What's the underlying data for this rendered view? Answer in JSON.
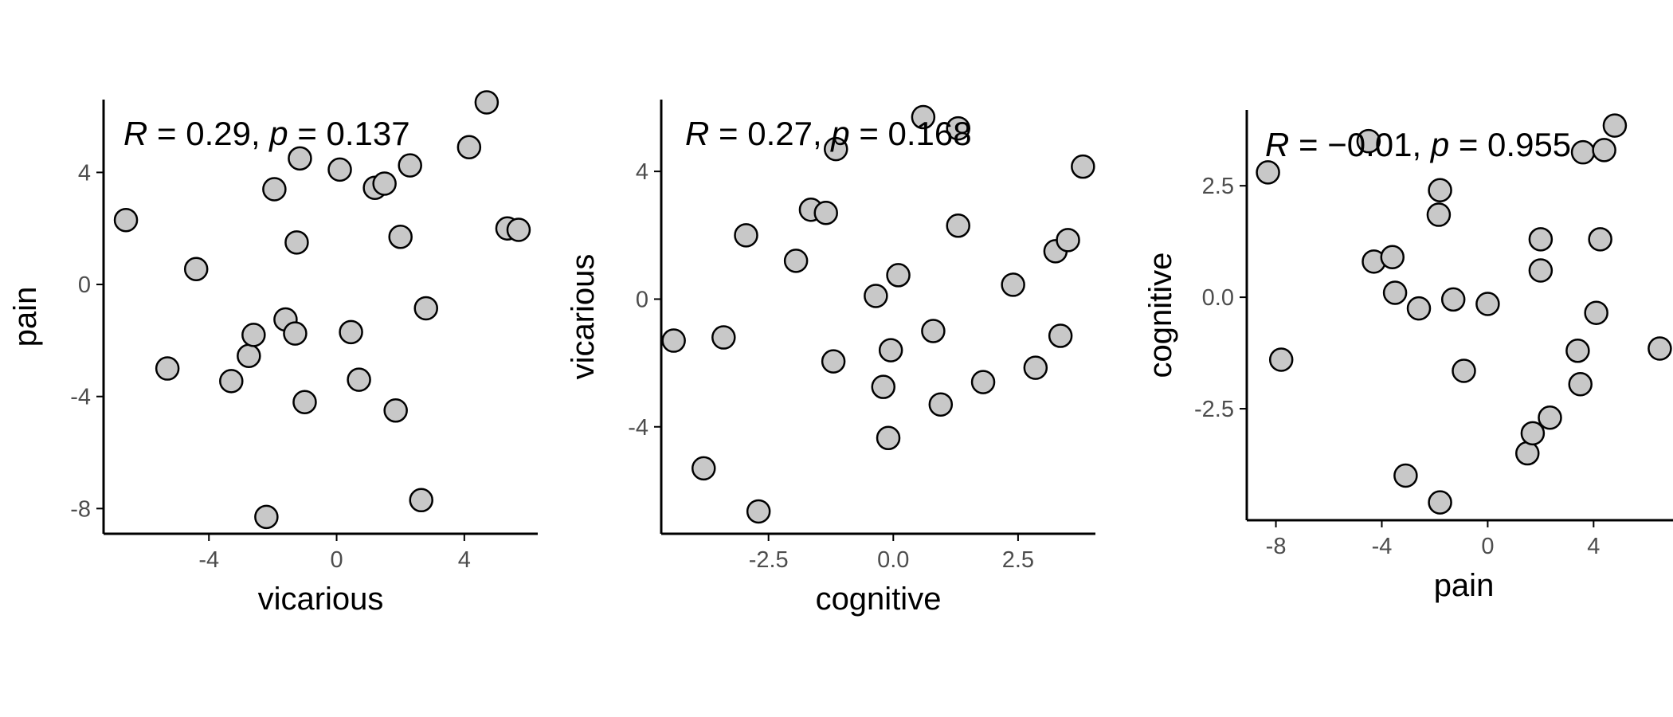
{
  "chart_data": [
    {
      "type": "scatter",
      "xlabel": "vicarious",
      "ylabel": "pain",
      "annotation": {
        "r_symbol": "R",
        "r_text": " = 0.29, ",
        "p_symbol": "p",
        "p_text": " = 0.137"
      },
      "xticks": [
        -4,
        0,
        4
      ],
      "xtick_labels": [
        "-4",
        "0",
        "4"
      ],
      "yticks": [
        -8,
        -4,
        0,
        4
      ],
      "ytick_labels": [
        "-8",
        "-4",
        "0",
        "4"
      ],
      "xlim": [
        -7.3,
        6.3
      ],
      "ylim": [
        -8.9,
        6.6
      ],
      "grid": false,
      "points": [
        {
          "x": -6.6,
          "y": 2.3
        },
        {
          "x": -4.4,
          "y": 0.55
        },
        {
          "x": -5.3,
          "y": -3.0
        },
        {
          "x": -3.3,
          "y": -3.45
        },
        {
          "x": -2.75,
          "y": -2.55
        },
        {
          "x": -2.6,
          "y": -1.8
        },
        {
          "x": -2.2,
          "y": -8.3
        },
        {
          "x": -1.95,
          "y": 3.4
        },
        {
          "x": -1.6,
          "y": -1.25
        },
        {
          "x": -1.3,
          "y": -1.75
        },
        {
          "x": -1.25,
          "y": 1.5
        },
        {
          "x": -1.15,
          "y": 4.5
        },
        {
          "x": -1.0,
          "y": -4.2
        },
        {
          "x": 0.1,
          "y": 4.1
        },
        {
          "x": 0.45,
          "y": -1.7
        },
        {
          "x": 0.7,
          "y": -3.4
        },
        {
          "x": 1.2,
          "y": 3.45
        },
        {
          "x": 1.5,
          "y": 3.6
        },
        {
          "x": 1.85,
          "y": -4.5
        },
        {
          "x": 2.0,
          "y": 1.7
        },
        {
          "x": 2.3,
          "y": 4.25
        },
        {
          "x": 2.65,
          "y": -7.7
        },
        {
          "x": 2.8,
          "y": -0.85
        },
        {
          "x": 4.15,
          "y": 4.9
        },
        {
          "x": 4.7,
          "y": 6.5
        },
        {
          "x": 5.35,
          "y": 2.0
        },
        {
          "x": 5.7,
          "y": 1.95
        }
      ]
    },
    {
      "type": "scatter",
      "xlabel": "cognitive",
      "ylabel": "vicarious",
      "annotation": {
        "r_symbol": "R",
        "r_text": " = 0.27, ",
        "p_symbol": "p",
        "p_text": " = 0.168"
      },
      "xticks": [
        -2.5,
        0,
        2.5
      ],
      "xtick_labels": [
        "-2.5",
        "0.0",
        "2.5"
      ],
      "yticks": [
        -4,
        0,
        4
      ],
      "yticks_labels_note": "",
      "ytick_labels": [
        "-4",
        "0",
        "4"
      ],
      "xlim": [
        -4.65,
        4.05
      ],
      "ylim": [
        -7.35,
        6.25
      ],
      "grid": false,
      "points": [
        {
          "x": -4.4,
          "y": -1.3
        },
        {
          "x": -3.8,
          "y": -5.3
        },
        {
          "x": -3.4,
          "y": -1.2
        },
        {
          "x": -2.95,
          "y": 2.0
        },
        {
          "x": -2.7,
          "y": -6.65
        },
        {
          "x": -1.95,
          "y": 1.2
        },
        {
          "x": -1.65,
          "y": 2.8
        },
        {
          "x": -1.35,
          "y": 2.7
        },
        {
          "x": -1.2,
          "y": -1.95
        },
        {
          "x": -1.15,
          "y": 4.7
        },
        {
          "x": -0.35,
          "y": 0.1
        },
        {
          "x": -0.2,
          "y": -2.75
        },
        {
          "x": -0.1,
          "y": -4.35
        },
        {
          "x": -0.05,
          "y": -1.6
        },
        {
          "x": 0.1,
          "y": 0.75
        },
        {
          "x": 0.6,
          "y": 5.7
        },
        {
          "x": 0.8,
          "y": -1.0
        },
        {
          "x": 0.95,
          "y": -3.3
        },
        {
          "x": 1.3,
          "y": 5.35
        },
        {
          "x": 1.3,
          "y": 2.3
        },
        {
          "x": 1.8,
          "y": -2.6
        },
        {
          "x": 2.4,
          "y": 0.45
        },
        {
          "x": 2.85,
          "y": -2.15
        },
        {
          "x": 3.25,
          "y": 1.5
        },
        {
          "x": 3.35,
          "y": -1.15
        },
        {
          "x": 3.5,
          "y": 1.85
        },
        {
          "x": 3.8,
          "y": 4.15
        }
      ]
    },
    {
      "type": "scatter",
      "xlabel": "pain",
      "ylabel": "cognitive",
      "annotation": {
        "r_symbol": "R",
        "r_text": " = −0.01, ",
        "p_symbol": "p",
        "p_text": " = 0.955"
      },
      "xticks": [
        -8,
        -4,
        0,
        4
      ],
      "xtick_labels": [
        "-8",
        "-4",
        "0",
        "4"
      ],
      "yticks": [
        -2.5,
        0,
        2.5
      ],
      "ytick_labels": [
        "-2.5",
        "0.0",
        "2.5"
      ],
      "xlim": [
        -9.1,
        7.3
      ],
      "ylim": [
        -5.0,
        4.2
      ],
      "grid": false,
      "points": [
        {
          "x": -8.3,
          "y": 2.8
        },
        {
          "x": -7.8,
          "y": -1.4
        },
        {
          "x": -4.5,
          "y": 3.5
        },
        {
          "x": -4.3,
          "y": 0.8
        },
        {
          "x": -3.6,
          "y": 0.9
        },
        {
          "x": -3.5,
          "y": 0.1
        },
        {
          "x": -3.1,
          "y": -4.0
        },
        {
          "x": -2.6,
          "y": -0.25
        },
        {
          "x": -1.8,
          "y": 2.4
        },
        {
          "x": -1.85,
          "y": 1.85
        },
        {
          "x": -1.8,
          "y": -4.6
        },
        {
          "x": -1.3,
          "y": -0.05
        },
        {
          "x": -0.9,
          "y": -1.65
        },
        {
          "x": 0.0,
          "y": -0.15
        },
        {
          "x": 1.5,
          "y": -3.5
        },
        {
          "x": 1.7,
          "y": -3.05
        },
        {
          "x": 2.0,
          "y": 1.3
        },
        {
          "x": 2.0,
          "y": 0.6
        },
        {
          "x": 2.35,
          "y": -2.7
        },
        {
          "x": 3.4,
          "y": -1.2
        },
        {
          "x": 3.5,
          "y": -1.95
        },
        {
          "x": 3.6,
          "y": 3.25
        },
        {
          "x": 4.1,
          "y": -0.35
        },
        {
          "x": 4.25,
          "y": 1.3
        },
        {
          "x": 4.4,
          "y": 3.3
        },
        {
          "x": 4.8,
          "y": 3.85
        },
        {
          "x": 6.5,
          "y": -1.15
        }
      ]
    }
  ]
}
